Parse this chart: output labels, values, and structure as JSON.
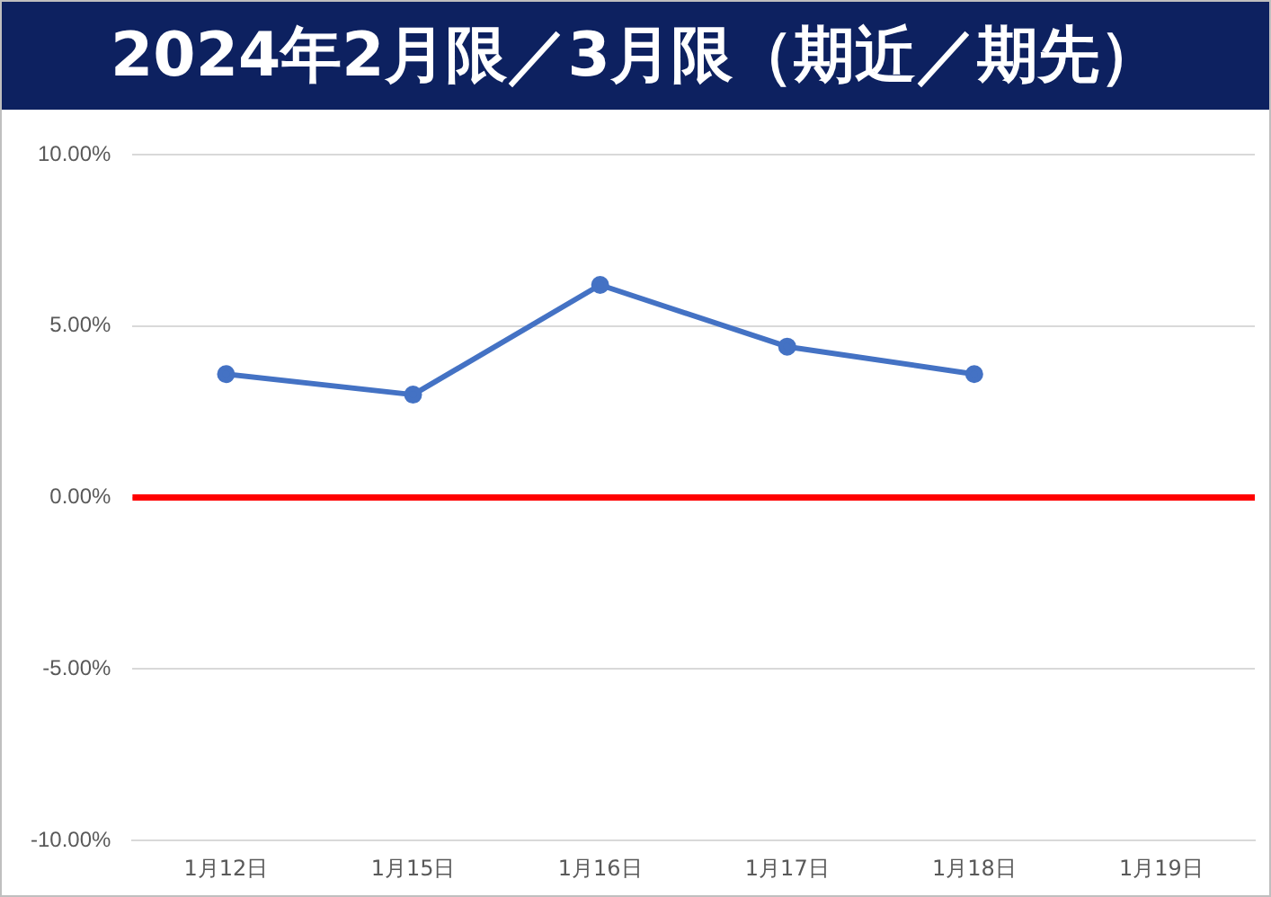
{
  "chart_data": {
    "type": "line",
    "title": "2024年2月限／3月限（期近／期先）",
    "categories": [
      "1月12日",
      "1月15日",
      "1月16日",
      "1月17日",
      "1月18日",
      "1月19日"
    ],
    "series": [
      {
        "color": "#4472c4",
        "values": [
          3.6,
          3.0,
          6.2,
          4.4,
          3.6,
          null
        ]
      }
    ],
    "ylim": [
      -10,
      10
    ],
    "yticks": [
      {
        "value": -10,
        "label": "-10.00%"
      },
      {
        "value": -5,
        "label": "-5.00%"
      },
      {
        "value": 0,
        "label": "0.00%"
      },
      {
        "value": 5,
        "label": "5.00%"
      },
      {
        "value": 10,
        "label": "10.00%"
      }
    ],
    "ref_lines": [
      {
        "axis": "y",
        "value": 0,
        "color": "#ff0000"
      }
    ],
    "grid": "y",
    "marker": "circle",
    "line_style": "solid"
  }
}
